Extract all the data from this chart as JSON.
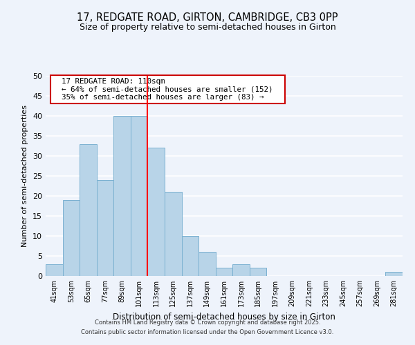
{
  "title": "17, REDGATE ROAD, GIRTON, CAMBRIDGE, CB3 0PP",
  "subtitle": "Size of property relative to semi-detached houses in Girton",
  "xlabel": "Distribution of semi-detached houses by size in Girton",
  "ylabel": "Number of semi-detached properties",
  "bar_labels": [
    "41sqm",
    "53sqm",
    "65sqm",
    "77sqm",
    "89sqm",
    "101sqm",
    "113sqm",
    "125sqm",
    "137sqm",
    "149sqm",
    "161sqm",
    "173sqm",
    "185sqm",
    "197sqm",
    "209sqm",
    "221sqm",
    "233sqm",
    "245sqm",
    "257sqm",
    "269sqm",
    "281sqm"
  ],
  "bar_values": [
    3,
    19,
    33,
    24,
    40,
    40,
    32,
    21,
    10,
    6,
    2,
    3,
    2,
    0,
    0,
    0,
    0,
    0,
    0,
    0,
    1
  ],
  "bar_color": "#b8d4e8",
  "bar_edge_color": "#7ab0d0",
  "highlight_line_color": "red",
  "annotation_title": "17 REDGATE ROAD: 110sqm",
  "annotation_line1": "← 64% of semi-detached houses are smaller (152)",
  "annotation_line2": "35% of semi-detached houses are larger (83) →",
  "box_color": "white",
  "box_edge_color": "#cc0000",
  "ylim": [
    0,
    50
  ],
  "yticks": [
    0,
    5,
    10,
    15,
    20,
    25,
    30,
    35,
    40,
    45,
    50
  ],
  "footer1": "Contains HM Land Registry data © Crown copyright and database right 2025.",
  "footer2": "Contains public sector information licensed under the Open Government Licence v3.0.",
  "background_color": "#eef3fb",
  "grid_color": "white"
}
